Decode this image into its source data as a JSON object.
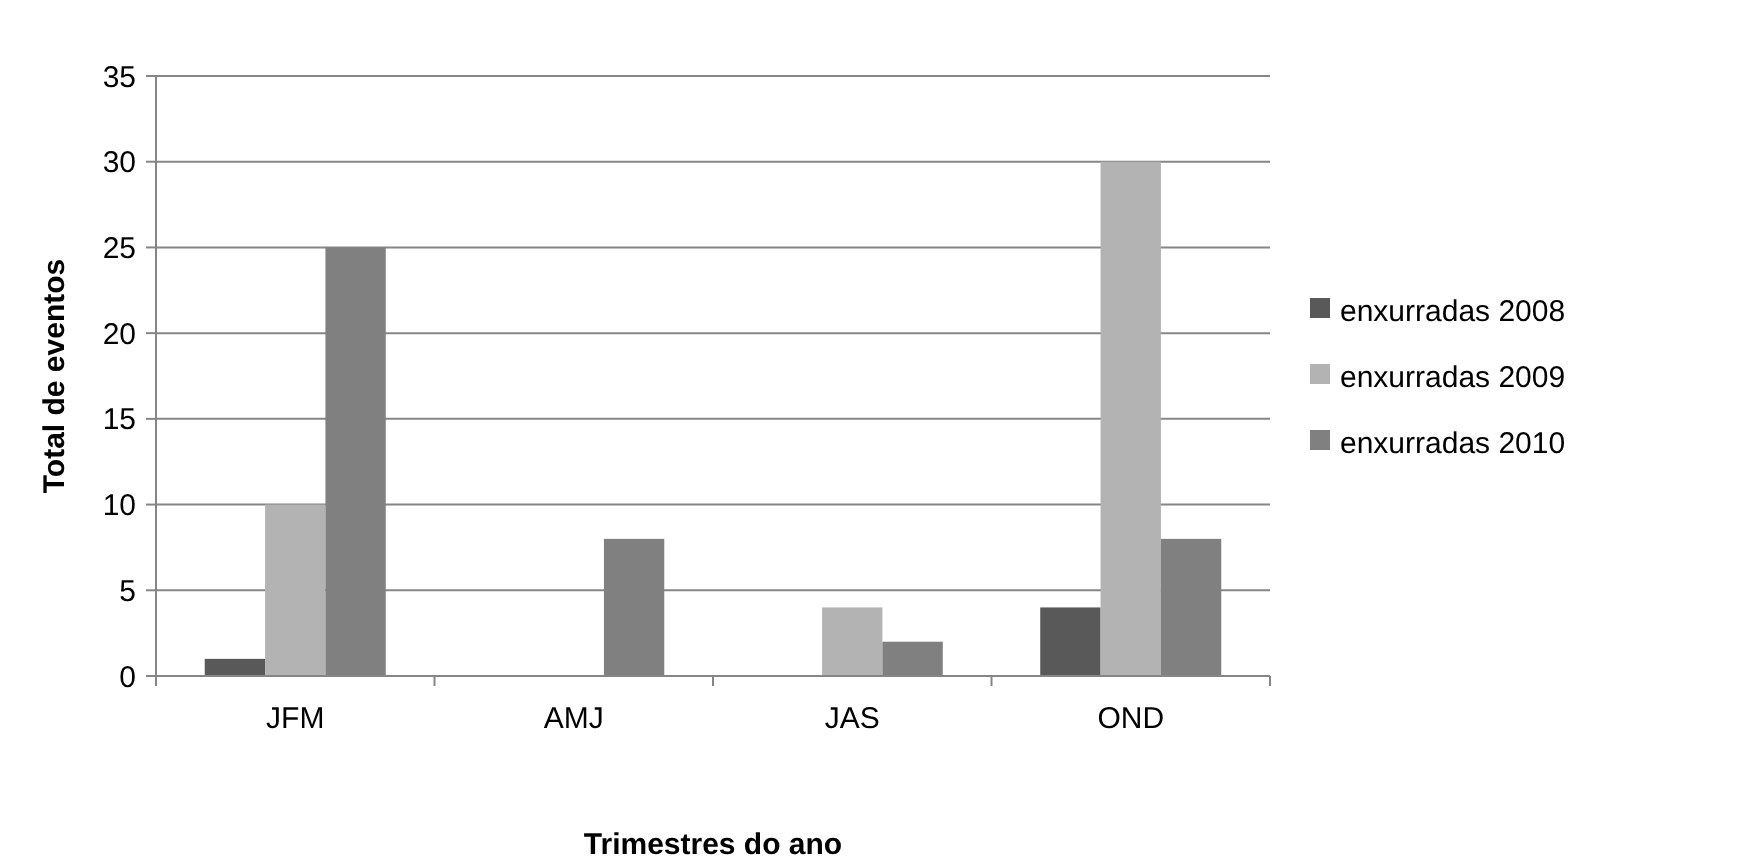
{
  "chart_data": {
    "type": "bar",
    "xlabel": "Trimestres do ano",
    "ylabel": "Total de eventos",
    "categories": [
      "JFM",
      "AMJ",
      "JAS",
      "OND"
    ],
    "series": [
      {
        "name": "enxurradas 2008",
        "color": "#595959",
        "values": [
          1,
          0,
          0,
          4
        ]
      },
      {
        "name": "enxurradas 2009",
        "color": "#b3b3b3",
        "values": [
          10,
          0,
          4,
          30
        ]
      },
      {
        "name": "enxurradas 2010",
        "color": "#808080",
        "values": [
          25,
          8,
          2,
          8
        ]
      }
    ],
    "ylim": [
      0,
      35
    ],
    "yticks": [
      0,
      5,
      10,
      15,
      20,
      25,
      30,
      35
    ],
    "grid": "y",
    "legend": "right"
  }
}
